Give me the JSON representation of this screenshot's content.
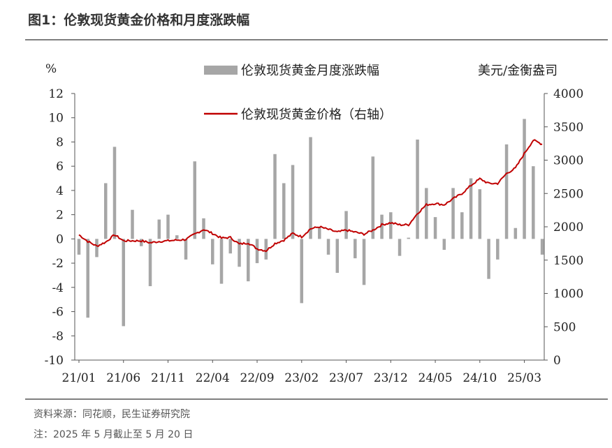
{
  "header": {
    "title": "图1：伦敦现货黄金价格和月度涨跌幅"
  },
  "footer": {
    "source": "资料来源：同花顺，民生证券研究院",
    "note": "注：2025 年 5 月截止至 5 月 20 日"
  },
  "chart_data": {
    "type": "bar+line",
    "left_axis": {
      "unit": "%",
      "ylim": [
        -10,
        12
      ],
      "ticks": [
        "12",
        "10",
        "8",
        "6",
        "4",
        "2",
        "0",
        "-2",
        "-4",
        "-6",
        "-8",
        "-10"
      ]
    },
    "right_axis": {
      "unit": "美元/金衡盎司",
      "ylim": [
        0,
        4000
      ],
      "ticks": [
        "4000",
        "3500",
        "3000",
        "2500",
        "2000",
        "1500",
        "1000",
        "500",
        "0"
      ]
    },
    "x_ticks": [
      "21/01",
      "21/06",
      "21/11",
      "22/04",
      "22/09",
      "23/02",
      "23/07",
      "23/12",
      "24/05",
      "24/10",
      "25/03"
    ],
    "legend": [
      {
        "name": "伦敦现货黄金月度涨跌幅",
        "kind": "bar",
        "color": "#a6a6a6"
      },
      {
        "name": "伦敦现货黄金价格（右轴）",
        "kind": "line",
        "color": "#c00000"
      }
    ],
    "bar_series": {
      "name": "伦敦现货黄金月度涨跌幅",
      "color": "#a6a6a6",
      "months": [
        "21/01",
        "21/02",
        "21/03",
        "21/04",
        "21/05",
        "21/06",
        "21/07",
        "21/08",
        "21/09",
        "21/10",
        "21/11",
        "21/12",
        "22/01",
        "22/02",
        "22/03",
        "22/04",
        "22/05",
        "22/06",
        "22/07",
        "22/08",
        "22/09",
        "22/10",
        "22/11",
        "22/12",
        "23/01",
        "23/02",
        "23/03",
        "23/04",
        "23/05",
        "23/06",
        "23/07",
        "23/08",
        "23/09",
        "23/10",
        "23/11",
        "23/12",
        "24/01",
        "24/02",
        "24/03",
        "24/04",
        "24/05",
        "24/06",
        "24/07",
        "24/08",
        "24/09",
        "24/10",
        "24/11",
        "24/12",
        "25/01",
        "25/02",
        "25/03",
        "25/04",
        "25/05"
      ],
      "values": [
        -1.3,
        -6.5,
        -1.5,
        4.6,
        7.6,
        -7.2,
        2.4,
        -0.6,
        -3.9,
        1.6,
        2.0,
        0.3,
        -1.7,
        6.4,
        1.7,
        -2.1,
        -3.7,
        -1.2,
        -2.3,
        -3.5,
        -2.0,
        -1.7,
        7.0,
        4.6,
        6.1,
        -5.3,
        8.4,
        1.0,
        -1.3,
        -2.8,
        2.3,
        -1.6,
        -3.8,
        6.8,
        2.0,
        2.2,
        -1.4,
        0.1,
        8.2,
        4.2,
        1.8,
        -0.9,
        4.2,
        2.2,
        5.0,
        4.1,
        -3.3,
        -1.7,
        7.8,
        0.9,
        9.9,
        6.0,
        -1.3
      ]
    },
    "line_series": {
      "name": "伦敦现货黄金价格（右轴）",
      "color": "#c00000",
      "months": [
        "21/01",
        "21/02",
        "21/03",
        "21/04",
        "21/05",
        "21/06",
        "21/07",
        "21/08",
        "21/09",
        "21/10",
        "21/11",
        "21/12",
        "22/01",
        "22/02",
        "22/03",
        "22/04",
        "22/05",
        "22/06",
        "22/07",
        "22/08",
        "22/09",
        "22/10",
        "22/11",
        "22/12",
        "23/01",
        "23/02",
        "23/03",
        "23/04",
        "23/05",
        "23/06",
        "23/07",
        "23/08",
        "23/09",
        "23/10",
        "23/11",
        "23/12",
        "24/01",
        "24/02",
        "24/03",
        "24/04",
        "24/05",
        "24/06",
        "24/07",
        "24/08",
        "24/09",
        "24/10",
        "24/11",
        "24/12",
        "25/01",
        "25/02",
        "25/03",
        "25/04",
        "25/05"
      ],
      "values": [
        1880,
        1780,
        1710,
        1770,
        1880,
        1790,
        1790,
        1790,
        1760,
        1780,
        1790,
        1800,
        1810,
        1890,
        1960,
        1900,
        1830,
        1840,
        1740,
        1760,
        1670,
        1640,
        1750,
        1800,
        1900,
        1850,
        1970,
        2000,
        1960,
        1920,
        1950,
        1920,
        1890,
        1950,
        2030,
        2060,
        2030,
        2030,
        2200,
        2330,
        2350,
        2330,
        2420,
        2500,
        2620,
        2720,
        2650,
        2650,
        2800,
        2880,
        3100,
        3300,
        3240
      ]
    }
  }
}
